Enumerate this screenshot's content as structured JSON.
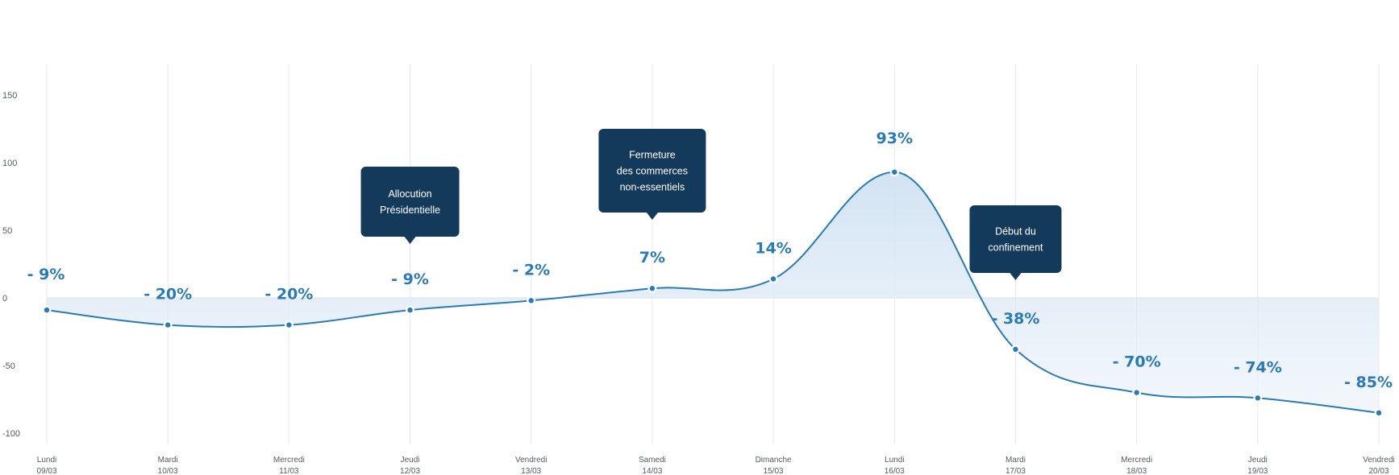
{
  "chart_data": {
    "type": "area",
    "categories": [
      {
        "day": "Lundi",
        "date": "09/03"
      },
      {
        "day": "Mardi",
        "date": "10/03"
      },
      {
        "day": "Mercredi",
        "date": "11/03"
      },
      {
        "day": "Jeudi",
        "date": "12/03"
      },
      {
        "day": "Vendredi",
        "date": "13/03"
      },
      {
        "day": "Samedi",
        "date": "14/03"
      },
      {
        "day": "Dimanche",
        "date": "15/03"
      },
      {
        "day": "Lundi",
        "date": "16/03"
      },
      {
        "day": "Mardi",
        "date": "17/03"
      },
      {
        "day": "Mercredi",
        "date": "18/03"
      },
      {
        "day": "Jeudi",
        "date": "19/03"
      },
      {
        "day": "Vendredi",
        "date": "20/03"
      }
    ],
    "values": [
      -9,
      -20,
      -20,
      -9,
      -2,
      7,
      14,
      93,
      -38,
      -70,
      -74,
      -85
    ],
    "labels": [
      "- 9%",
      "- 20%",
      "- 20%",
      "- 9%",
      "- 2%",
      "7%",
      "14%",
      "93%",
      "- 38%",
      "- 70%",
      "- 74%",
      "- 85%"
    ],
    "ylim": [
      -100,
      150
    ],
    "yticks": [
      150,
      100,
      50,
      0,
      -50,
      -100
    ],
    "grid": "vertical",
    "annotations": [
      {
        "index": 3,
        "lines": [
          "Allocution",
          "Présidentielle"
        ]
      },
      {
        "index": 5,
        "lines": [
          "Fermeture",
          "des commerces",
          "non-essentiels"
        ]
      },
      {
        "index": 8,
        "lines": [
          "Début du",
          "confinement"
        ]
      }
    ],
    "colors": {
      "line": "#2a7ab8",
      "fill": "#dbe8f5",
      "label": "#2a7ab8",
      "callout": "#133a5a",
      "grid": "#e7eaee",
      "tick": "#555b63"
    }
  }
}
